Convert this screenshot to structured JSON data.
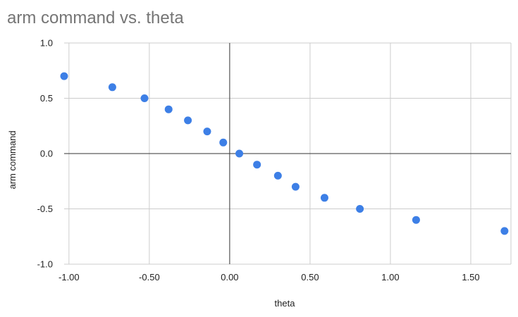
{
  "chart_data": {
    "type": "scatter",
    "title": "arm command vs. theta",
    "xlabel": "theta",
    "ylabel": "arm command",
    "xlim": [
      -1.03,
      1.75
    ],
    "ylim": [
      -1.0,
      1.0
    ],
    "x_ticks": [
      -1.0,
      -0.5,
      0.0,
      0.5,
      1.0,
      1.5
    ],
    "x_tick_labels": [
      "-1.00",
      "-0.50",
      "0.00",
      "0.50",
      "1.00",
      "1.50"
    ],
    "y_ticks": [
      1.0,
      0.5,
      0.0,
      -0.5,
      -1.0
    ],
    "y_tick_labels": [
      "1.0",
      "0.5",
      "0.0",
      "-0.5",
      "-1.0"
    ],
    "grid": true,
    "legend": "none",
    "point_color": "#3d7fe6",
    "series": [
      {
        "x": [
          -1.03,
          -0.73,
          -0.53,
          -0.38,
          -0.26,
          -0.14,
          -0.04,
          0.06,
          0.17,
          0.3,
          0.41,
          0.59,
          0.81,
          1.16,
          1.71
        ],
        "y": [
          0.7,
          0.6,
          0.5,
          0.4,
          0.3,
          0.2,
          0.1,
          0.0,
          -0.1,
          -0.2,
          -0.3,
          -0.4,
          -0.5,
          -0.6,
          -0.7
        ]
      }
    ]
  }
}
